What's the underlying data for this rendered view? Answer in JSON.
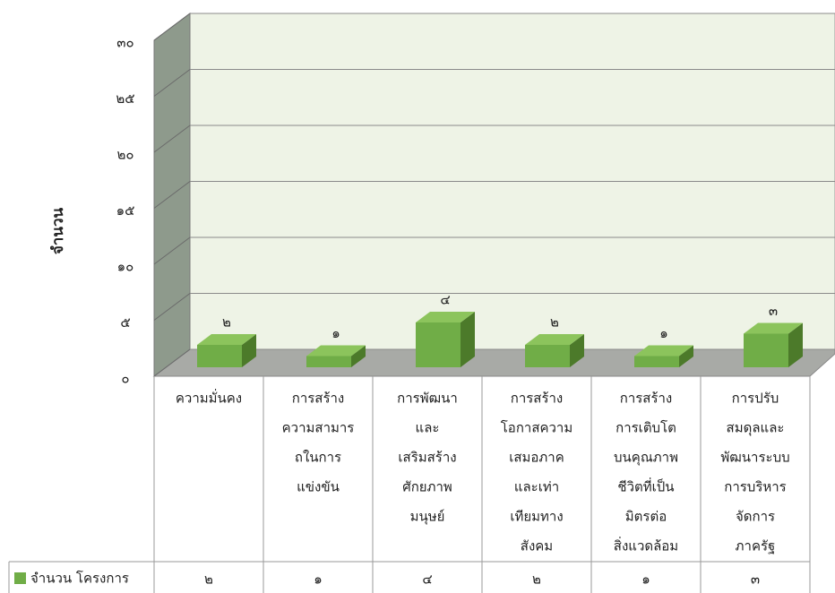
{
  "chart_data": {
    "type": "bar3d",
    "ylabel": "จำนวน",
    "categories": [
      [
        "ความมั่นคง"
      ],
      [
        "การสร้าง",
        "ความสามาร",
        "ถในการ",
        "แข่งขัน"
      ],
      [
        "การพัฒนา",
        "และ",
        "เสริมสร้าง",
        "ศักยภาพ",
        "มนุษย์"
      ],
      [
        "การสร้าง",
        "โอกาสความ",
        "เสมอภาค",
        "และเท่า",
        "เทียมทาง",
        "สังคม"
      ],
      [
        "การสร้าง",
        "การเติบโต",
        "บนคุณภาพ",
        "ชีวิตที่เป็น",
        "มิตรต่อ",
        "สิ่งแวดล้อม"
      ],
      [
        "การปรับ",
        "สมดุลและ",
        "พัฒนาระบบ",
        "การบริหาร",
        "จัดการ",
        "ภาครัฐ"
      ]
    ],
    "series": [
      {
        "name": "จำนวน โครงการ",
        "color": "#70ad47",
        "values": [
          2,
          1,
          4,
          2,
          1,
          3
        ],
        "value_labels": [
          "๒",
          "๑",
          "๔",
          "๒",
          "๑",
          "๓"
        ]
      }
    ],
    "ylim": [
      0,
      30
    ],
    "yticks": [
      {
        "value": 0,
        "label": "๐"
      },
      {
        "value": 5,
        "label": "๕"
      },
      {
        "value": 10,
        "label": "๑๐"
      },
      {
        "value": 15,
        "label": "๑๕"
      },
      {
        "value": 20,
        "label": "๒๐"
      },
      {
        "value": 25,
        "label": "๒๕"
      },
      {
        "value": 30,
        "label": "๓๐"
      }
    ],
    "grid": true
  }
}
